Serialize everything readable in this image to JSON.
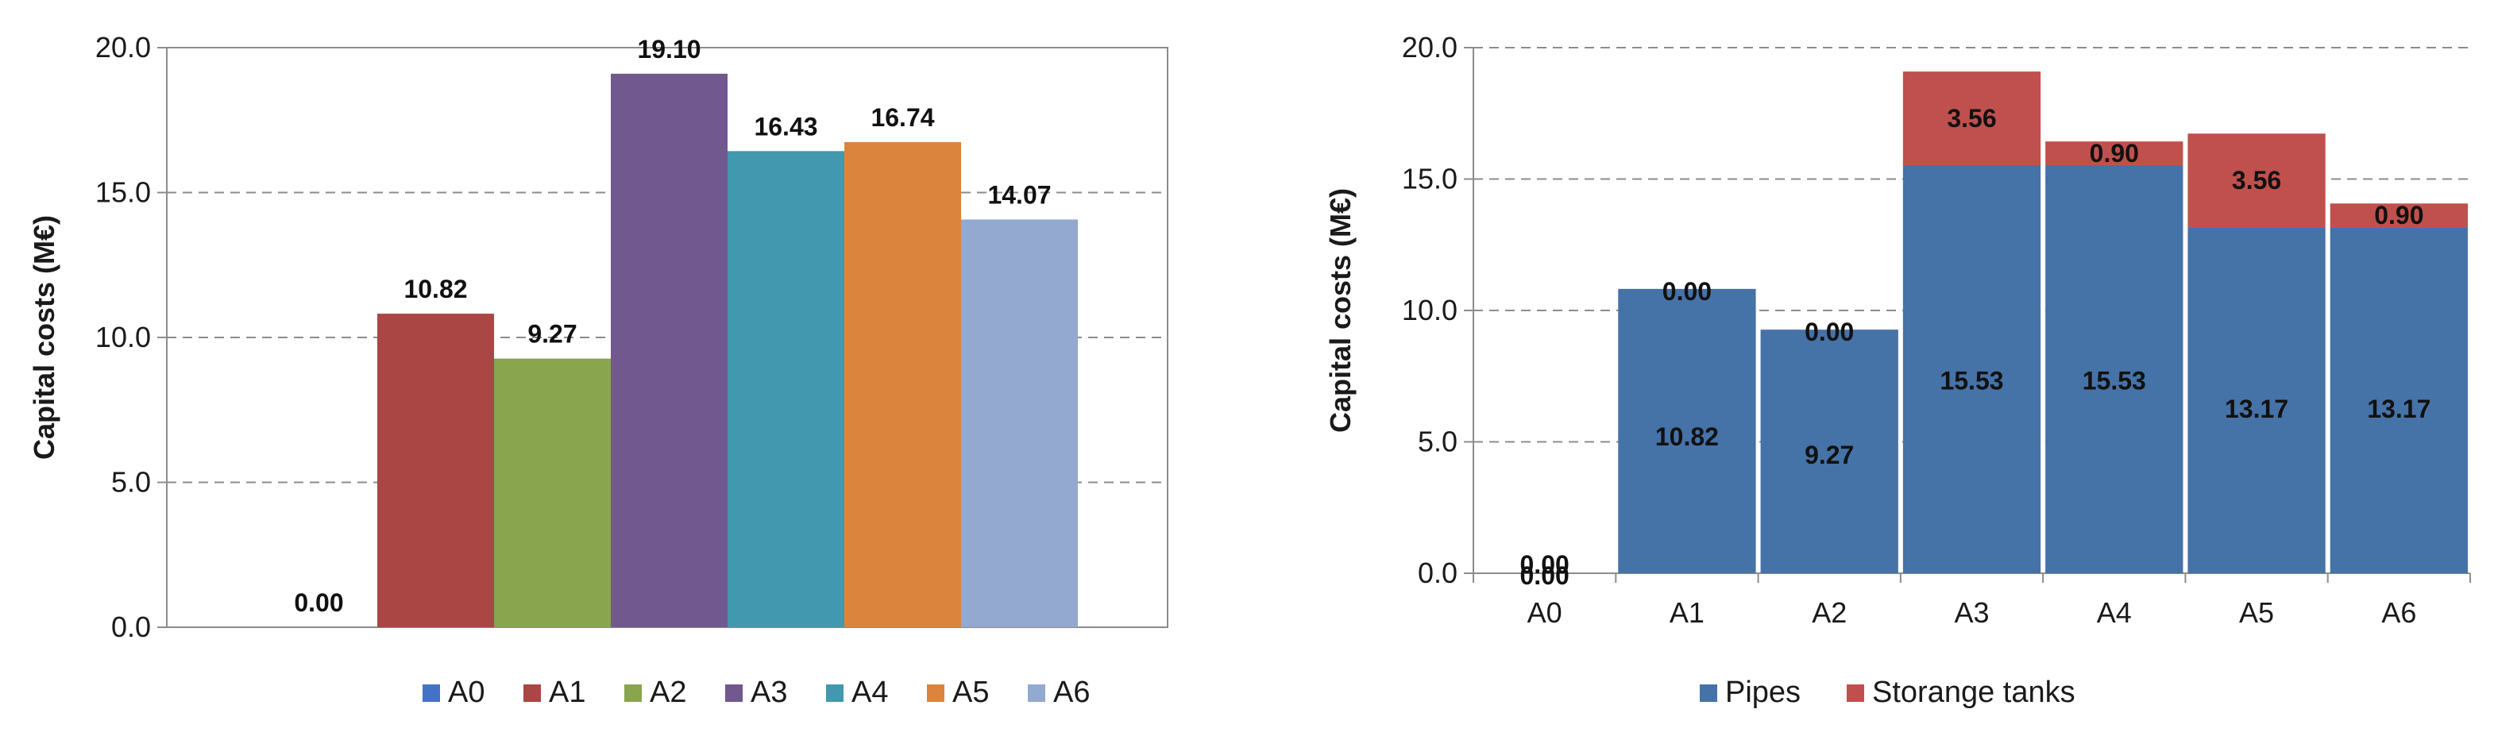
{
  "chart_data": [
    {
      "type": "bar",
      "ylabel": "Capital costs (M€)",
      "ylim": [
        0,
        20
      ],
      "yticks": [
        "0.0",
        "5.0",
        "10.0",
        "15.0",
        "20.0"
      ],
      "grid": "horizontal dashed",
      "legend": "bottom",
      "series": [
        {
          "name": "A0",
          "value": 0.0,
          "label": "0.00",
          "color": "#4472C4"
        },
        {
          "name": "A1",
          "value": 10.82,
          "label": "10.82",
          "color": "#AA4644"
        },
        {
          "name": "A2",
          "value": 9.27,
          "label": "9.27",
          "color": "#89A54E"
        },
        {
          "name": "A3",
          "value": 19.1,
          "label": "19.10",
          "color": "#71588F"
        },
        {
          "name": "A4",
          "value": 16.43,
          "label": "16.43",
          "color": "#4198AF"
        },
        {
          "name": "A5",
          "value": 16.74,
          "label": "16.74",
          "color": "#DB843D"
        },
        {
          "name": "A6",
          "value": 14.07,
          "label": "14.07",
          "color": "#93A9CF"
        }
      ]
    },
    {
      "type": "bar",
      "stacked": true,
      "ylabel": "Capital costs (M€)",
      "ylim": [
        0,
        20
      ],
      "yticks": [
        "0.0",
        "5.0",
        "10.0",
        "15.0",
        "20.0"
      ],
      "grid": "horizontal dashed",
      "legend": "bottom",
      "categories": [
        "A0",
        "A1",
        "A2",
        "A3",
        "A4",
        "A5",
        "A6"
      ],
      "series": [
        {
          "name": "Pipes",
          "color": "#4572A7",
          "values": [
            0.0,
            10.82,
            9.27,
            15.53,
            15.53,
            13.17,
            13.17
          ],
          "labels": [
            "0.00",
            "10.82",
            "9.27",
            "15.53",
            "15.53",
            "13.17",
            "13.17"
          ]
        },
        {
          "name": "Storange tanks",
          "color": "#C0504D",
          "values": [
            0.0,
            0.0,
            0.0,
            3.56,
            0.9,
            3.56,
            0.9
          ],
          "labels": [
            "0.00",
            "0.00",
            "0.00",
            "3.56",
            "0.90",
            "3.56",
            "0.90"
          ]
        }
      ]
    }
  ]
}
